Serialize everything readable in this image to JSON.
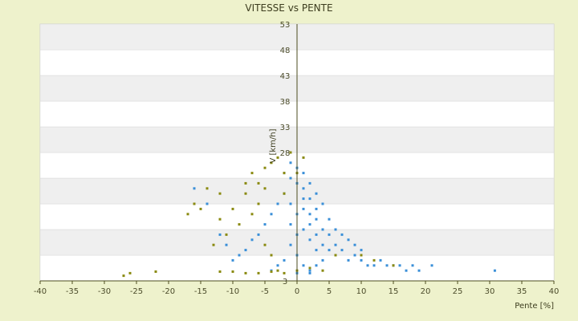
{
  "chart_data": {
    "type": "scatter",
    "title": "VITESSE vs PENTE",
    "xlabel": "Pente [%]",
    "ylabel": "V [km/h]",
    "xlim": [
      -40,
      40
    ],
    "ylim": [
      3,
      53
    ],
    "xticks": [
      -40,
      -35,
      -30,
      -25,
      -20,
      -15,
      -10,
      -5,
      0,
      5,
      10,
      15,
      20,
      25,
      30,
      35,
      40
    ],
    "yticks": [
      3,
      8,
      13,
      18,
      23,
      28,
      33,
      38,
      43,
      48,
      53
    ],
    "yticks_labeled": [
      3,
      28,
      33,
      38,
      43,
      48,
      53
    ],
    "grid": "horizontal alternating bands",
    "colors": {
      "background": "#eef2cc",
      "band_light": "#ffffff",
      "band_dark": "#efefef",
      "axis": "#4d4d1f",
      "series_blue": "#3a8fd8",
      "series_olive": "#8a8a10"
    },
    "series": [
      {
        "color": "#3a8fd8",
        "points": [
          [
            -2,
            20
          ],
          [
            -1,
            18
          ],
          [
            0,
            22
          ],
          [
            1,
            19
          ],
          [
            2,
            16
          ],
          [
            3,
            15
          ],
          [
            -1,
            14
          ],
          [
            0,
            12
          ],
          [
            1,
            13
          ],
          [
            2,
            11
          ],
          [
            3,
            12
          ],
          [
            4,
            10
          ],
          [
            5,
            9
          ],
          [
            6,
            8
          ],
          [
            7,
            9
          ],
          [
            8,
            7
          ],
          [
            9,
            8
          ],
          [
            10,
            7
          ],
          [
            11,
            6
          ],
          [
            12,
            6
          ],
          [
            13,
            7
          ],
          [
            14,
            6
          ],
          [
            15,
            6
          ],
          [
            16,
            6
          ],
          [
            17,
            5
          ],
          [
            18,
            6
          ],
          [
            19,
            5
          ],
          [
            -3,
            18
          ],
          [
            -4,
            16
          ],
          [
            -5,
            14
          ],
          [
            -6,
            12
          ],
          [
            -7,
            11
          ],
          [
            -8,
            9
          ],
          [
            -9,
            8
          ],
          [
            -10,
            7
          ],
          [
            -11,
            10
          ],
          [
            -12,
            12
          ],
          [
            -14,
            18
          ],
          [
            -16,
            21
          ],
          [
            0,
            25
          ],
          [
            1,
            24
          ],
          [
            -1,
            26
          ],
          [
            2,
            22
          ],
          [
            3,
            20
          ],
          [
            4,
            18
          ],
          [
            5,
            15
          ],
          [
            6,
            13
          ],
          [
            7,
            12
          ],
          [
            8,
            11
          ],
          [
            9,
            10
          ],
          [
            10,
            9
          ],
          [
            30.8,
            5
          ],
          [
            21,
            6
          ],
          [
            0,
            8
          ],
          [
            1,
            6
          ],
          [
            2,
            5
          ],
          [
            3,
            6
          ],
          [
            4,
            7
          ],
          [
            -2,
            7
          ],
          [
            -3,
            6
          ],
          [
            -4,
            5
          ],
          [
            0,
            4.5
          ],
          [
            2,
            4.5
          ],
          [
            -1,
            10
          ],
          [
            1,
            17
          ],
          [
            2,
            14
          ],
          [
            3,
            9
          ],
          [
            4,
            13
          ],
          [
            5,
            12
          ],
          [
            6,
            10
          ],
          [
            0,
            16
          ],
          [
            -1,
            23
          ],
          [
            -2,
            24
          ],
          [
            1,
            21
          ],
          [
            2,
            19
          ],
          [
            3,
            17
          ]
        ]
      },
      {
        "color": "#8a8a10",
        "points": [
          [
            -5,
            25
          ],
          [
            -6,
            22
          ],
          [
            -8,
            20
          ],
          [
            -10,
            17
          ],
          [
            -12,
            15
          ],
          [
            -15,
            17
          ],
          [
            -17,
            16
          ],
          [
            -3,
            27
          ],
          [
            -4,
            26
          ],
          [
            -2,
            24
          ],
          [
            -1,
            28
          ],
          [
            -6,
            18
          ],
          [
            -7,
            16
          ],
          [
            -9,
            14
          ],
          [
            -11,
            12
          ],
          [
            -13,
            10
          ],
          [
            -5,
            10
          ],
          [
            -4,
            8
          ],
          [
            -3,
            5
          ],
          [
            -2,
            4.5
          ],
          [
            -27,
            4
          ],
          [
            -26,
            4.5
          ],
          [
            -22,
            4.8
          ],
          [
            -12,
            4.8
          ],
          [
            -10,
            4.8
          ],
          [
            -8,
            4.5
          ],
          [
            -6,
            4.5
          ],
          [
            -4,
            4.8
          ],
          [
            0,
            5
          ],
          [
            2,
            5.5
          ],
          [
            4,
            5
          ],
          [
            6,
            8
          ],
          [
            10,
            8
          ],
          [
            12,
            7
          ],
          [
            15,
            6
          ],
          [
            -16,
            18
          ],
          [
            -14,
            21
          ],
          [
            -12,
            20
          ],
          [
            -8,
            22
          ],
          [
            -7,
            24
          ],
          [
            -5,
            21
          ],
          [
            -2,
            20
          ],
          [
            0,
            24
          ],
          [
            1,
            27
          ]
        ]
      }
    ]
  }
}
